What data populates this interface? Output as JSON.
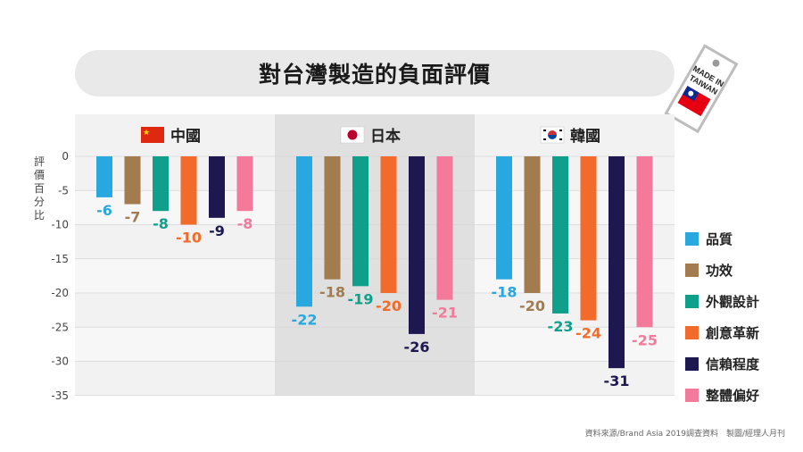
{
  "title": "對台灣製造的負面評價",
  "tag_text": [
    "MADE IN",
    "TAIWAN"
  ],
  "y_axis_label": [
    "評",
    "價",
    "百",
    "分",
    "比"
  ],
  "source": "資料來源/Brand Asia 2019調查資料　製圖/經理人月刊",
  "colors": {
    "panel_light": "#f2f2f2",
    "panel_dark": "#e0e0e0",
    "stripe": "#f7f7f7"
  },
  "chart_data": {
    "type": "bar",
    "groups": [
      {
        "name": "中國",
        "flag": "china-flag-icon"
      },
      {
        "name": "日本",
        "flag": "japan-flag-icon"
      },
      {
        "name": "韓國",
        "flag": "korea-flag-icon"
      }
    ],
    "series": [
      {
        "name": "品質",
        "color": "#29a8e0",
        "values": [
          -6,
          -22,
          -18
        ]
      },
      {
        "name": "功效",
        "color": "#a27b4f",
        "values": [
          -7,
          -18,
          -20
        ]
      },
      {
        "name": "外觀設計",
        "color": "#0fa08c",
        "values": [
          -8,
          -19,
          -23
        ]
      },
      {
        "name": "創意革新",
        "color": "#f26b2a",
        "values": [
          -10,
          -20,
          -24
        ]
      },
      {
        "name": "信賴程度",
        "color": "#1d1850",
        "values": [
          -9,
          -26,
          -31
        ]
      },
      {
        "name": "整體偏好",
        "color": "#f47a9b",
        "values": [
          -8,
          -21,
          -25
        ]
      }
    ],
    "y_ticks": [
      0,
      -5,
      -10,
      -15,
      -20,
      -25,
      -30,
      -35
    ],
    "ylim": [
      -35,
      0
    ],
    "legend_position": "right"
  }
}
